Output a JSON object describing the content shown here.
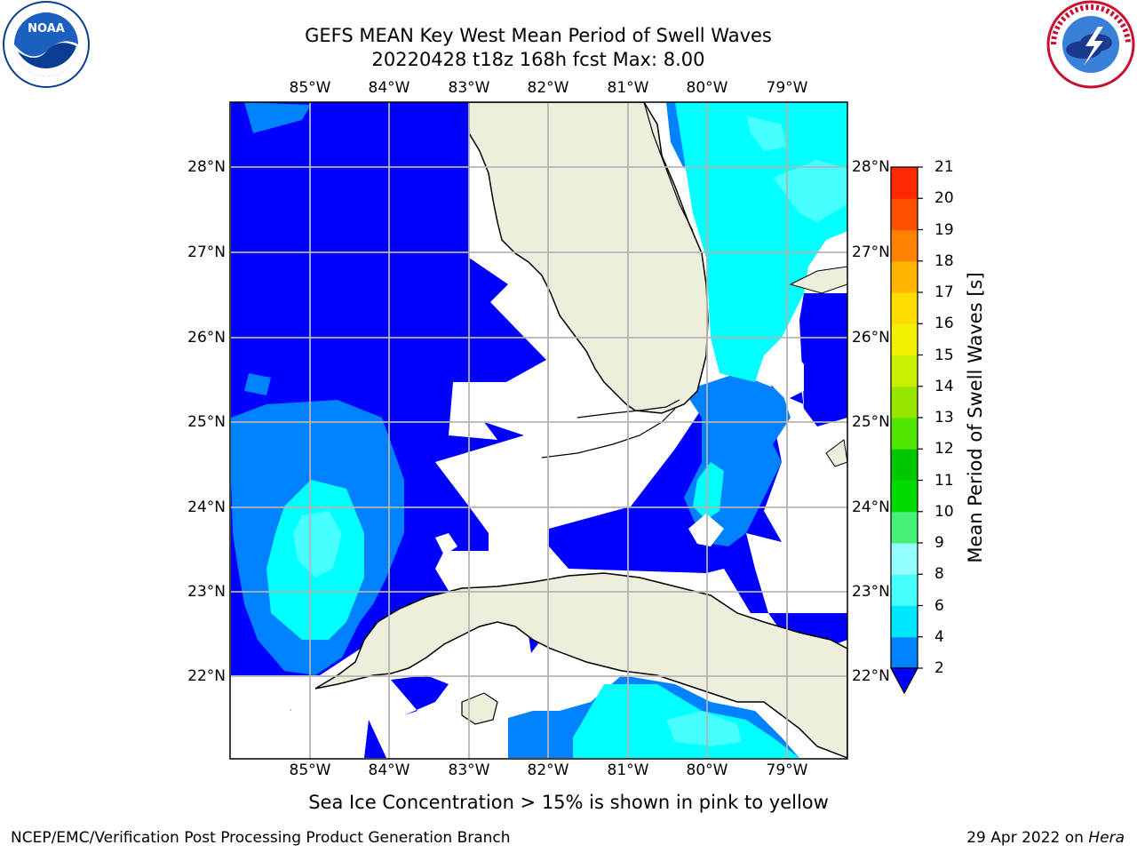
{
  "header": {
    "title_line1": "GEFS MEAN Key West Mean Period of Swell Waves",
    "title_line2": "20220428 t18z 168h fcst   Max: 8.00"
  },
  "logos": {
    "left": "noara-logo",
    "right": "national-weather-service-logo",
    "left_text": "NOAA",
    "right_text": "NATIONAL WEATHER SERVICE"
  },
  "map": {
    "lon_labels": [
      "85°W",
      "84°W",
      "83°W",
      "82°W",
      "81°W",
      "80°W",
      "79°W"
    ],
    "lat_labels": [
      "28°N",
      "27°N",
      "26°N",
      "25°N",
      "24°N",
      "23°N",
      "22°N"
    ],
    "gridlines": true,
    "colors": {
      "land": "#eeeedc",
      "no_data": "#ffffff",
      "band_2_4": "#0000ff",
      "band_4_6": "#0082ff",
      "band_6_8": "#00ffff",
      "band_8_9": "#46ffff",
      "grid": "#b4b4b4"
    }
  },
  "colorbar": {
    "label": "Mean Period of Swell Waves [s]",
    "ticks": [
      "2",
      "4",
      "6",
      "8",
      "9",
      "10",
      "11",
      "12",
      "13",
      "14",
      "15",
      "16",
      "17",
      "18",
      "19",
      "20",
      "21"
    ],
    "colors": [
      "#0000ff",
      "#0082ff",
      "#00e6ff",
      "#46ffff",
      "#96ffff",
      "#46f078",
      "#00dc00",
      "#00c800",
      "#50e600",
      "#96e600",
      "#c8f000",
      "#f0f000",
      "#ffdc00",
      "#ffb400",
      "#ff8200",
      "#ff5000",
      "#ff2800",
      "#ff0000"
    ]
  },
  "footer": {
    "note": "Sea Ice Concentration > 15% is shown in pink to yellow",
    "credit": "NCEP/EMC/Verification Post Processing Product Generation Branch",
    "date_prefix": "29 Apr 2022 on ",
    "date_machine": "Hera"
  }
}
